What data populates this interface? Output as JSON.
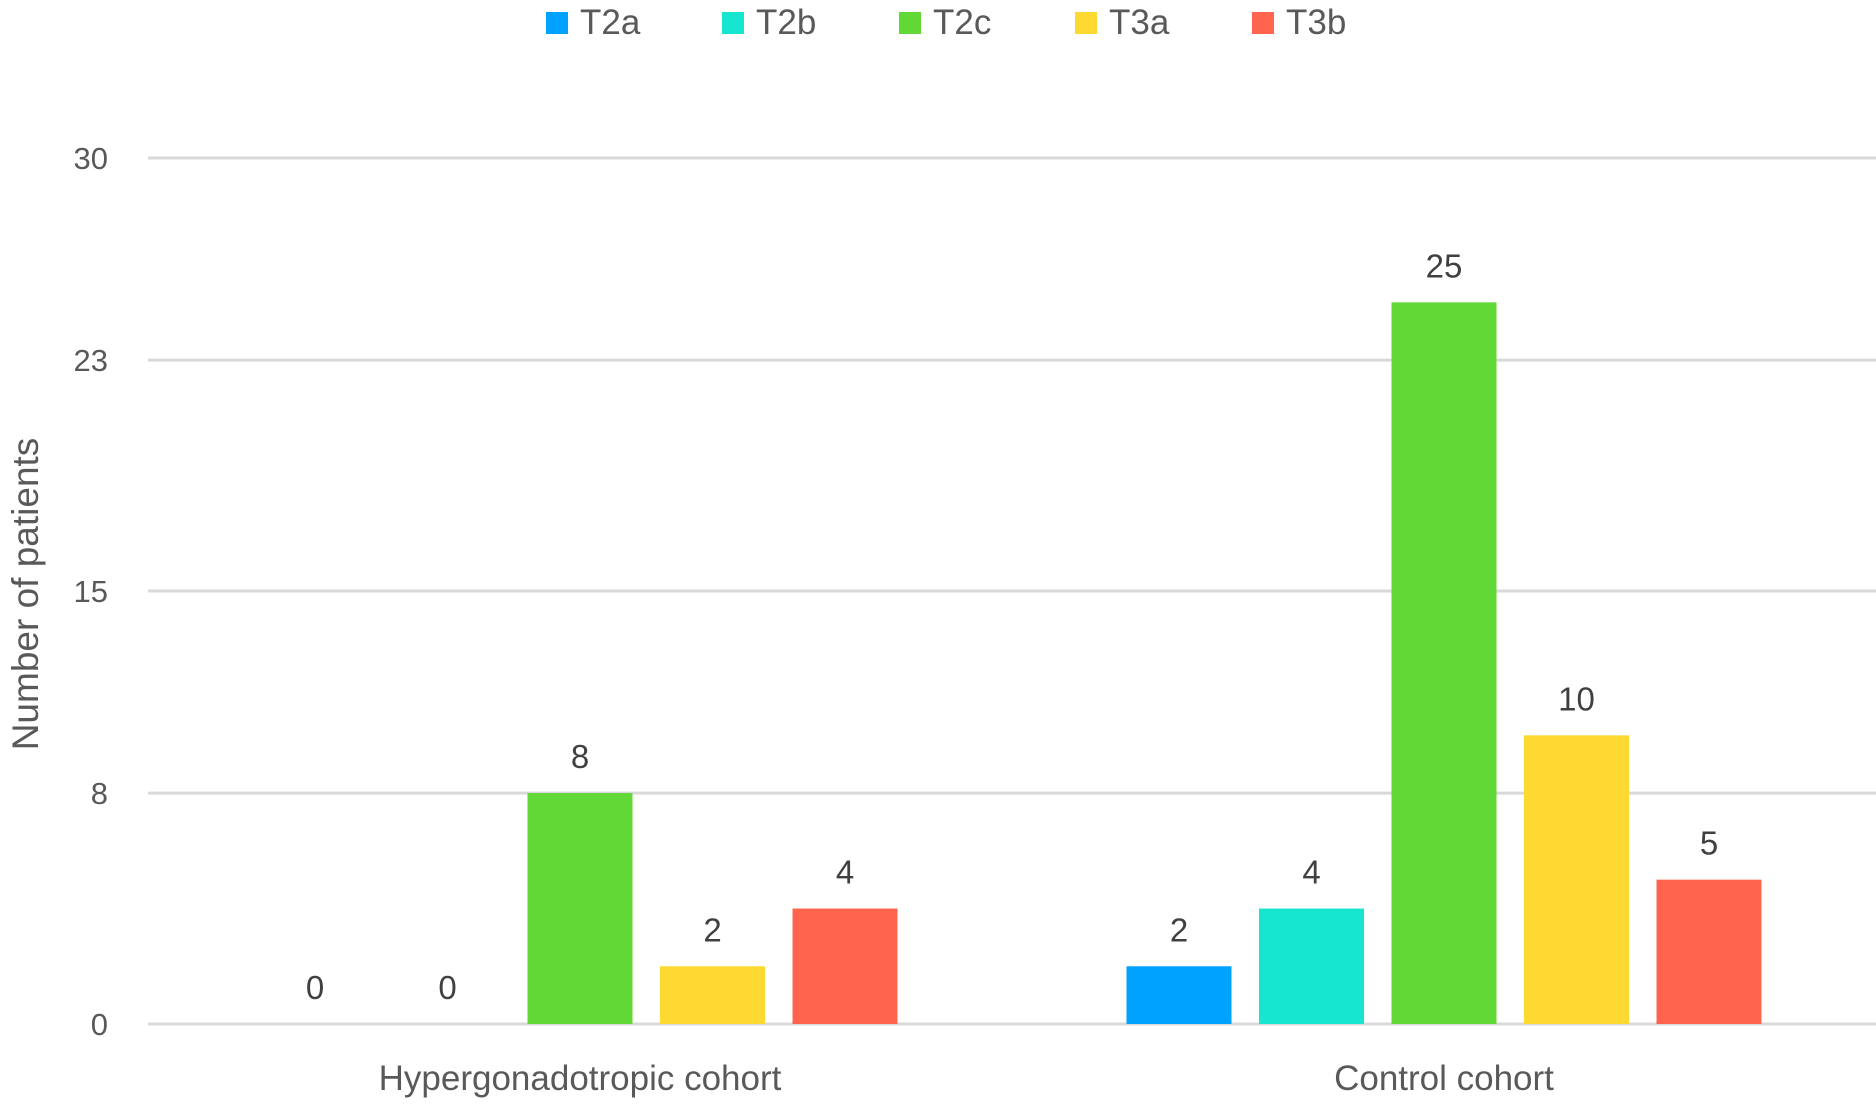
{
  "chart_data": {
    "type": "bar",
    "title": "",
    "xlabel": "",
    "ylabel": "Number of patients",
    "categories": [
      "Hypergonadotropic cohort",
      "Control cohort"
    ],
    "series": [
      {
        "name": "T2a",
        "color": "#00a2ff",
        "values": [
          0,
          2
        ]
      },
      {
        "name": "T2b",
        "color": "#16e6cf",
        "values": [
          0,
          4
        ]
      },
      {
        "name": "T2c",
        "color": "#61d836",
        "values": [
          8,
          25
        ]
      },
      {
        "name": "T3a",
        "color": "#fed931",
        "values": [
          2,
          10
        ]
      },
      {
        "name": "T3b",
        "color": "#ff644e",
        "values": [
          4,
          5
        ]
      }
    ],
    "y_ticks": [
      0,
      8,
      15,
      23,
      30
    ],
    "ylim": [
      0,
      30
    ],
    "grid": true,
    "legend_position": "top"
  }
}
